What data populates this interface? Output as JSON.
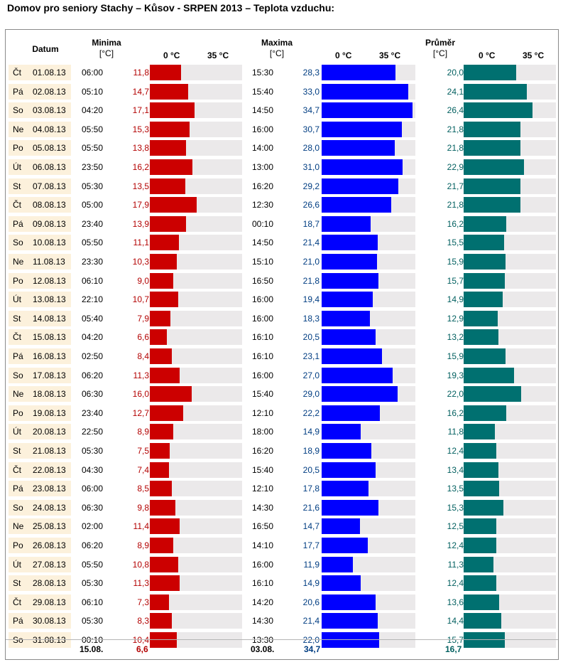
{
  "title": "Domov pro seniory Stachy – Kůsov - SRPEN 2013 – Teplota vzduchu:",
  "headers": {
    "datum": "Datum",
    "minima": [
      "Minima",
      "[°C]"
    ],
    "maxima": [
      "Maxima",
      "[°C]"
    ],
    "prumer": [
      "Průměr",
      "[°C]"
    ],
    "tick0": "0 °C",
    "tick35": "35 °C"
  },
  "colors": {
    "min_bar": "#cc0000",
    "max_bar": "#0000ff",
    "avg_bar": "#007070",
    "track": "#ebe9ea",
    "day_bg": "#fcf1dc"
  },
  "chart_data": {
    "type": "bar",
    "scale": [
      0,
      35
    ],
    "series": [
      {
        "name": "Minima",
        "values": [
          11.8,
          14.7,
          17.1,
          15.3,
          13.8,
          16.2,
          13.5,
          17.9,
          13.9,
          11.1,
          10.3,
          9.0,
          10.7,
          7.9,
          6.6,
          8.4,
          11.3,
          16.0,
          12.7,
          8.9,
          7.5,
          7.4,
          8.5,
          9.8,
          11.4,
          8.9,
          10.8,
          11.3,
          7.3,
          8.3,
          10.4
        ]
      },
      {
        "name": "Maxima",
        "values": [
          28.3,
          33.0,
          34.7,
          30.7,
          28.0,
          31.0,
          29.2,
          26.6,
          18.7,
          21.4,
          21.0,
          21.8,
          19.4,
          18.3,
          20.5,
          23.1,
          27.0,
          29.0,
          22.2,
          14.9,
          18.9,
          20.5,
          17.8,
          21.6,
          14.7,
          17.7,
          11.9,
          14.9,
          20.6,
          21.4,
          22.0
        ]
      },
      {
        "name": "Průměr",
        "values": [
          20.0,
          24.1,
          26.4,
          21.8,
          21.8,
          22.9,
          21.7,
          21.8,
          16.2,
          15.5,
          15.9,
          15.7,
          14.9,
          12.9,
          13.2,
          15.9,
          19.3,
          22.0,
          16.2,
          11.8,
          12.4,
          13.4,
          13.5,
          15.3,
          12.5,
          12.4,
          11.3,
          12.4,
          13.6,
          14.4,
          15.7
        ]
      }
    ]
  },
  "rows": [
    {
      "day": "Čt",
      "date": "01.08.13",
      "min_time": "06:00",
      "min": "11,8",
      "max_time": "15:30",
      "max": "28,3",
      "avg": "20,0"
    },
    {
      "day": "Pá",
      "date": "02.08.13",
      "min_time": "05:10",
      "min": "14,7",
      "max_time": "15:40",
      "max": "33,0",
      "avg": "24,1"
    },
    {
      "day": "So",
      "date": "03.08.13",
      "min_time": "04:20",
      "min": "17,1",
      "max_time": "14:50",
      "max": "34,7",
      "avg": "26,4"
    },
    {
      "day": "Ne",
      "date": "04.08.13",
      "min_time": "05:50",
      "min": "15,3",
      "max_time": "16:00",
      "max": "30,7",
      "avg": "21,8"
    },
    {
      "day": "Po",
      "date": "05.08.13",
      "min_time": "05:50",
      "min": "13,8",
      "max_time": "14:00",
      "max": "28,0",
      "avg": "21,8"
    },
    {
      "day": "Út",
      "date": "06.08.13",
      "min_time": "23:50",
      "min": "16,2",
      "max_time": "13:00",
      "max": "31,0",
      "avg": "22,9"
    },
    {
      "day": "St",
      "date": "07.08.13",
      "min_time": "05:30",
      "min": "13,5",
      "max_time": "16:20",
      "max": "29,2",
      "avg": "21,7"
    },
    {
      "day": "Čt",
      "date": "08.08.13",
      "min_time": "05:00",
      "min": "17,9",
      "max_time": "12:30",
      "max": "26,6",
      "avg": "21,8"
    },
    {
      "day": "Pá",
      "date": "09.08.13",
      "min_time": "23:40",
      "min": "13,9",
      "max_time": "00:10",
      "max": "18,7",
      "avg": "16,2"
    },
    {
      "day": "So",
      "date": "10.08.13",
      "min_time": "05:50",
      "min": "11,1",
      "max_time": "14:50",
      "max": "21,4",
      "avg": "15,5"
    },
    {
      "day": "Ne",
      "date": "11.08.13",
      "min_time": "23:30",
      "min": "10,3",
      "max_time": "15:10",
      "max": "21,0",
      "avg": "15,9"
    },
    {
      "day": "Po",
      "date": "12.08.13",
      "min_time": "06:10",
      "min": "9,0",
      "max_time": "16:50",
      "max": "21,8",
      "avg": "15,7"
    },
    {
      "day": "Út",
      "date": "13.08.13",
      "min_time": "22:10",
      "min": "10,7",
      "max_time": "16:00",
      "max": "19,4",
      "avg": "14,9"
    },
    {
      "day": "St",
      "date": "14.08.13",
      "min_time": "05:40",
      "min": "7,9",
      "max_time": "16:00",
      "max": "18,3",
      "avg": "12,9"
    },
    {
      "day": "Čt",
      "date": "15.08.13",
      "min_time": "04:20",
      "min": "6,6",
      "max_time": "16:10",
      "max": "20,5",
      "avg": "13,2"
    },
    {
      "day": "Pá",
      "date": "16.08.13",
      "min_time": "02:50",
      "min": "8,4",
      "max_time": "16:10",
      "max": "23,1",
      "avg": "15,9"
    },
    {
      "day": "So",
      "date": "17.08.13",
      "min_time": "06:20",
      "min": "11,3",
      "max_time": "16:00",
      "max": "27,0",
      "avg": "19,3"
    },
    {
      "day": "Ne",
      "date": "18.08.13",
      "min_time": "06:30",
      "min": "16,0",
      "max_time": "15:40",
      "max": "29,0",
      "avg": "22,0"
    },
    {
      "day": "Po",
      "date": "19.08.13",
      "min_time": "23:40",
      "min": "12,7",
      "max_time": "12:10",
      "max": "22,2",
      "avg": "16,2"
    },
    {
      "day": "Út",
      "date": "20.08.13",
      "min_time": "22:50",
      "min": "8,9",
      "max_time": "18:00",
      "max": "14,9",
      "avg": "11,8"
    },
    {
      "day": "St",
      "date": "21.08.13",
      "min_time": "05:30",
      "min": "7,5",
      "max_time": "16:20",
      "max": "18,9",
      "avg": "12,4"
    },
    {
      "day": "Čt",
      "date": "22.08.13",
      "min_time": "04:30",
      "min": "7,4",
      "max_time": "15:40",
      "max": "20,5",
      "avg": "13,4"
    },
    {
      "day": "Pá",
      "date": "23.08.13",
      "min_time": "06:00",
      "min": "8,5",
      "max_time": "12:10",
      "max": "17,8",
      "avg": "13,5"
    },
    {
      "day": "So",
      "date": "24.08.13",
      "min_time": "06:30",
      "min": "9,8",
      "max_time": "14:30",
      "max": "21,6",
      "avg": "15,3"
    },
    {
      "day": "Ne",
      "date": "25.08.13",
      "min_time": "02:00",
      "min": "11,4",
      "max_time": "16:50",
      "max": "14,7",
      "avg": "12,5"
    },
    {
      "day": "Po",
      "date": "26.08.13",
      "min_time": "06:20",
      "min": "8,9",
      "max_time": "14:10",
      "max": "17,7",
      "avg": "12,4"
    },
    {
      "day": "Út",
      "date": "27.08.13",
      "min_time": "05:50",
      "min": "10,8",
      "max_time": "16:00",
      "max": "11,9",
      "avg": "11,3"
    },
    {
      "day": "St",
      "date": "28.08.13",
      "min_time": "05:30",
      "min": "11,3",
      "max_time": "16:10",
      "max": "14,9",
      "avg": "12,4"
    },
    {
      "day": "Čt",
      "date": "29.08.13",
      "min_time": "06:10",
      "min": "7,3",
      "max_time": "14:20",
      "max": "20,6",
      "avg": "13,6"
    },
    {
      "day": "Pá",
      "date": "30.08.13",
      "min_time": "05:30",
      "min": "8,3",
      "max_time": "14:30",
      "max": "21,4",
      "avg": "14,4"
    },
    {
      "day": "So",
      "date": "31.08.13",
      "min_time": "00:10",
      "min": "10,4",
      "max_time": "13:30",
      "max": "22,0",
      "avg": "15,7"
    }
  ],
  "footer": {
    "min_date": "15.08.",
    "min_value": "6,6",
    "max_date": "03.08.",
    "max_value": "34,7",
    "avg_value": "16,7"
  }
}
